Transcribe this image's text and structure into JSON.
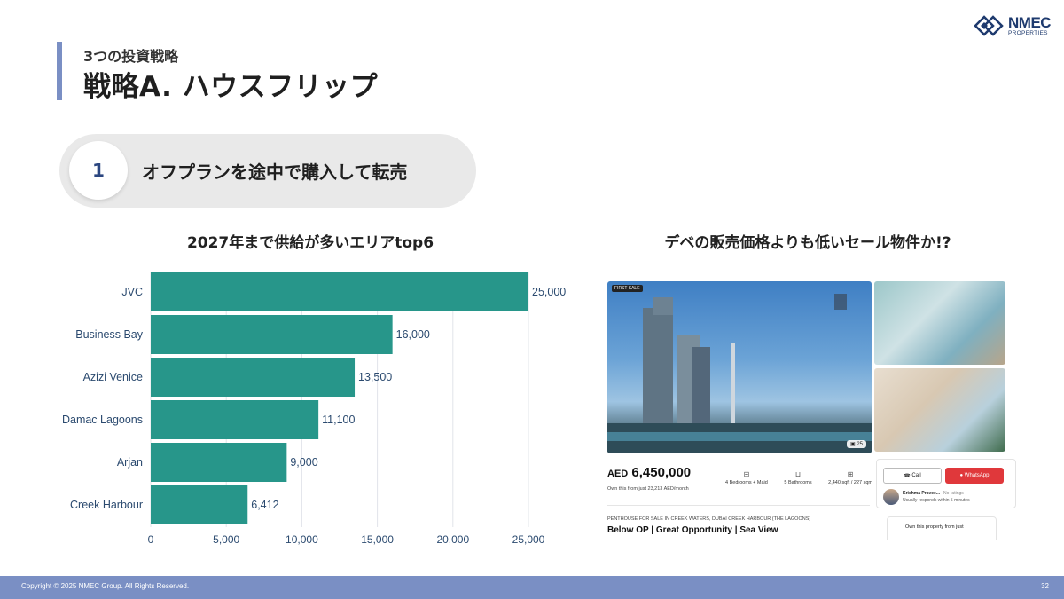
{
  "header": {
    "subtitle": "3つの投資戦略",
    "title": "戦略A. ハウスフリップ"
  },
  "logo": {
    "name": "NMEC",
    "sub": "PROPERTIES"
  },
  "step": {
    "number": "1",
    "label": "オフプランを途中で購入して転売"
  },
  "chart_section": {
    "title": "2027年まで供給が多いエリアtop6"
  },
  "listing_section": {
    "title": "デベの販売価格よりも低いセール物件か!?"
  },
  "chart_data": {
    "type": "bar",
    "orientation": "horizontal",
    "categories": [
      "JVC",
      "Business Bay",
      "Azizi Venice",
      "Damac Lagoons",
      "Arjan",
      "Creek Harbour"
    ],
    "values": [
      25000,
      16000,
      13500,
      11100,
      9000,
      6412
    ],
    "value_labels": [
      "25,000",
      "16,000",
      "13,500",
      "11,100",
      "9,000",
      "6,412"
    ],
    "xlim": [
      0,
      25000
    ],
    "x_ticks": [
      0,
      5000,
      10000,
      15000,
      20000,
      25000
    ],
    "x_tick_labels": [
      "0",
      "5,000",
      "10,000",
      "15,000",
      "20,000",
      "25,000"
    ],
    "grid": true,
    "bar_color": "#27968a"
  },
  "listing": {
    "tag": "FIRST SALE",
    "photo_count": "25",
    "currency": "AED",
    "price": "6,450,000",
    "monthly": "Own this from just 23,213 AED/month",
    "specs": [
      {
        "icon": "bed-icon",
        "text": "4 Bedrooms + Maid"
      },
      {
        "icon": "bath-icon",
        "text": "5 Bathrooms"
      },
      {
        "icon": "area-icon",
        "text": "2,440 sqft / 227 sqm"
      }
    ],
    "description_small": "PENTHOUSE FOR SALE IN CREEK WATERS, DUBAI CREEK HARBOUR (THE LAGOONS)",
    "description": "Below OP | Great Opportunity | Sea View",
    "call_label": "Call",
    "whatsapp_label": "WhatsApp",
    "agent_name": "Krishma Pravee...",
    "agent_rating": "No ratings",
    "agent_response": "Usually responds within 5 minutes",
    "own_label": "Own this property from just"
  },
  "footer": {
    "copyright": "Copyright © 2025 NMEC Group. All Rights Reserved.",
    "page": "32"
  },
  "colors": {
    "accent": "#7a8fc4",
    "bar": "#27968a",
    "brand": "#1e3a6e"
  }
}
